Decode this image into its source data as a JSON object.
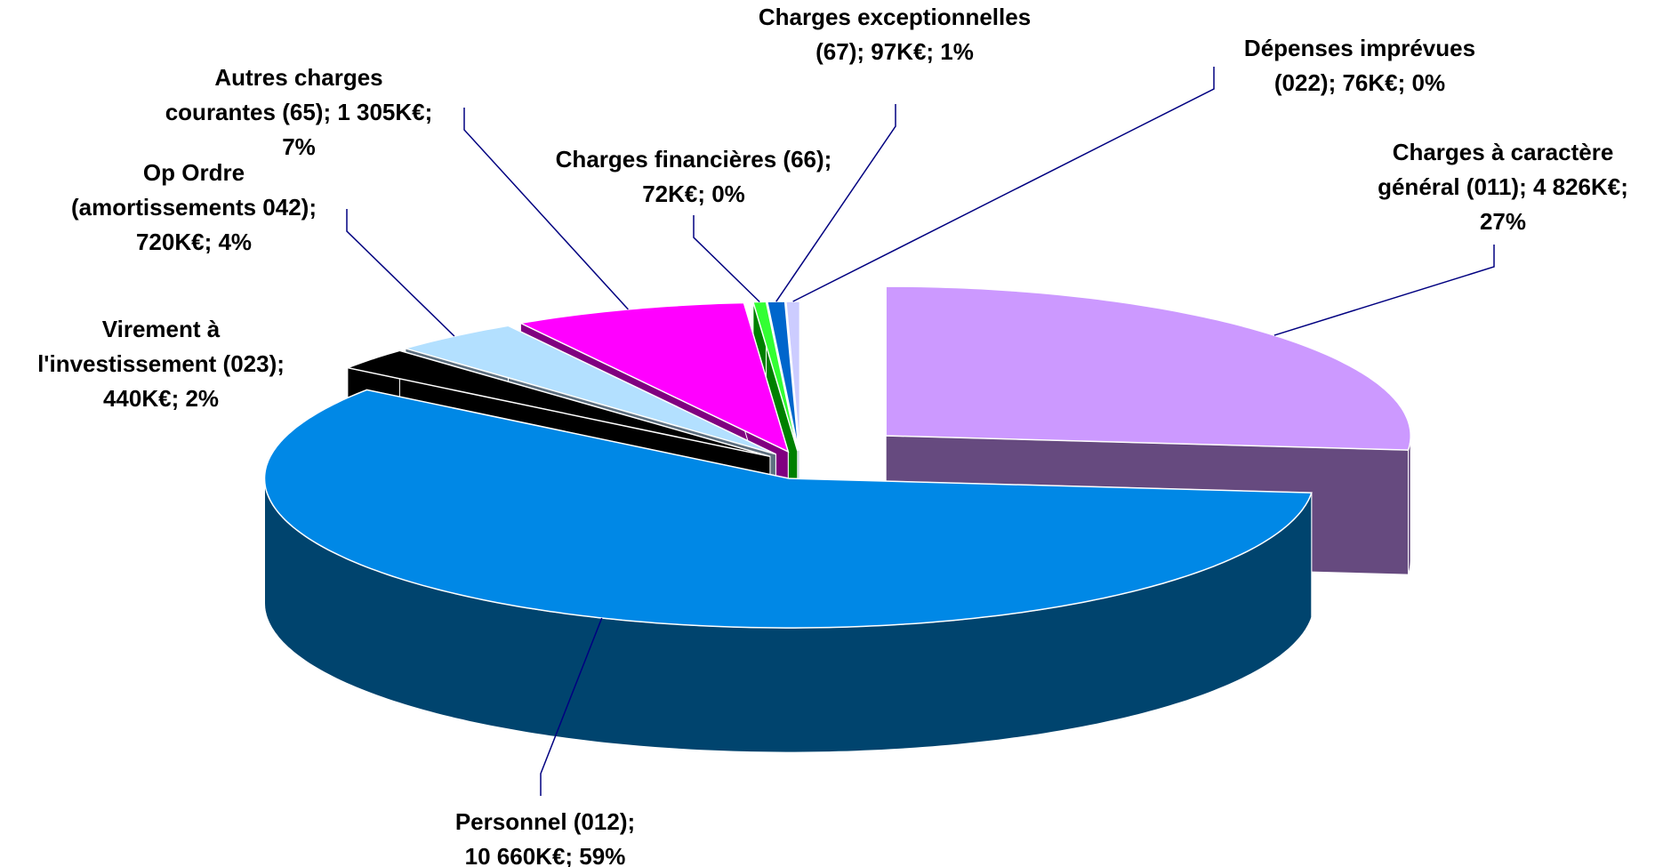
{
  "chart_data": {
    "type": "pie3d",
    "categories": [
      "Charges à caractère général (011)",
      "Personnel (012)",
      "Virement à l'investissement (023)",
      "Op Ordre (amortissements 042)",
      "Autres charges courantes (65)",
      "Charges financières (66)",
      "Charges exceptionnelles (67)",
      "Dépenses imprévues (022)"
    ],
    "values": [
      4826,
      10660,
      440,
      720,
      1305,
      72,
      97,
      76
    ],
    "labels": [
      [
        "Charges à caractère",
        "général (011); 4 826K€;",
        "27%"
      ],
      [
        "Personnel (012);",
        "10 660K€; 59%"
      ],
      [
        "Virement à",
        "l'investissement (023);",
        "440K€; 2%"
      ],
      [
        "Op Ordre",
        "(amortissements 042);",
        "720K€; 4%"
      ],
      [
        "Autres charges",
        "courantes (65); 1 305K€;",
        "7%"
      ],
      [
        "Charges financières (66);",
        "72K€; 0%"
      ],
      [
        "Charges exceptionnelles",
        "(67); 97K€; 1%"
      ],
      [
        "Dépenses imprévues",
        "(022); 76K€; 0%"
      ]
    ],
    "colors": [
      "#cc99ff",
      "#0088e6",
      "#000000",
      "#b3e0ff",
      "#ff00ff",
      "#33ff33",
      "#0066cc",
      "#ccccff"
    ],
    "side_colors": [
      "#664a7f",
      "#00446e",
      "#000000",
      "#5e7080",
      "#800080",
      "#008000",
      "#00407f",
      "#7f7fa0"
    ]
  }
}
